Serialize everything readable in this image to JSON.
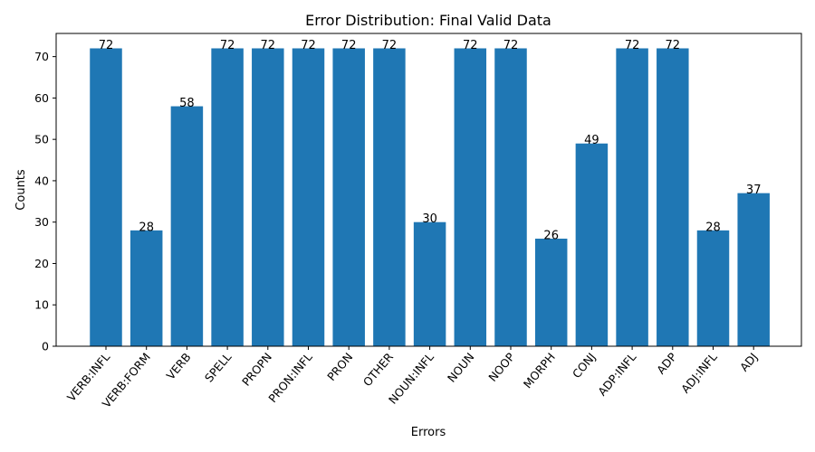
{
  "chart_data": {
    "type": "bar",
    "title": "Error Distribution: Final Valid Data",
    "xlabel": "Errors",
    "ylabel": "Counts",
    "categories": [
      "VERB:INFL",
      "VERB:FORM",
      "VERB",
      "SPELL",
      "PROPN",
      "PRON:INFL",
      "PRON",
      "OTHER",
      "NOUN:INFL",
      "NOUN",
      "NOOP",
      "MORPH",
      "CONJ",
      "ADP:INFL",
      "ADP",
      "ADJ:INFL",
      "ADJ"
    ],
    "values": [
      72,
      28,
      58,
      72,
      72,
      72,
      72,
      72,
      30,
      72,
      72,
      26,
      49,
      72,
      72,
      28,
      37
    ],
    "ylim": [
      0,
      75.6
    ],
    "yticks": [
      0,
      10,
      20,
      30,
      40,
      50,
      60,
      70
    ],
    "grid": false,
    "bar_color": "#1f77b4"
  }
}
